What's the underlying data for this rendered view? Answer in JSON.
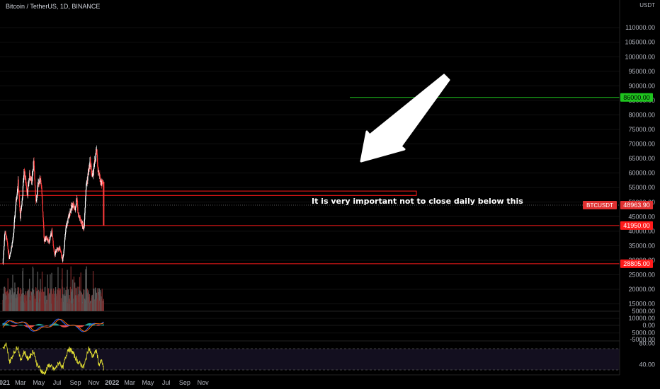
{
  "header": {
    "title": "Bitcoin / TetherUS, 1D, BINANCE",
    "currency": "USDT"
  },
  "annotation": "It is very important not to close daily below this",
  "colors": {
    "up": "#ffffff",
    "down": "#ff3b3b",
    "level": "#ff1a1a",
    "target": "#1ec41e",
    "macd": "#2962ff",
    "signal": "#ff6d00",
    "rsi": "#e6e234"
  },
  "chart_data": {
    "type": "candlestick",
    "symbol": "BTCUSDT",
    "current_price": 48963.9,
    "current_label": "48963.90",
    "ylim": [
      24000,
      112000
    ],
    "price_ticks": [
      "110000.00",
      "105000.00",
      "100000.00",
      "95000.00",
      "90000.00",
      "85000.00",
      "80000.00",
      "75000.00",
      "70000.00",
      "65000.00",
      "60000.00",
      "55000.00",
      "50000.00",
      "45000.00",
      "40000.00",
      "35000.00",
      "30000.00",
      "25000.00",
      "20000.00",
      "15000.00",
      "10000.00",
      "5000.00"
    ],
    "x_ticks": [
      "2021",
      "Mar",
      "May",
      "Jul",
      "Sep",
      "Nov",
      "2022",
      "Mar",
      "May",
      "Jul",
      "Sep",
      "Nov"
    ],
    "price_path": [
      [
        "2021-01-01",
        29000
      ],
      [
        "2021-01-08",
        40000
      ],
      [
        "2021-01-14",
        37000
      ],
      [
        "2021-01-22",
        31000
      ],
      [
        "2021-01-29",
        34000
      ],
      [
        "2021-02-05",
        38000
      ],
      [
        "2021-02-12",
        48000
      ],
      [
        "2021-02-21",
        57000
      ],
      [
        "2021-02-28",
        45000
      ],
      [
        "2021-03-07",
        51000
      ],
      [
        "2021-03-13",
        61000
      ],
      [
        "2021-03-24",
        53000
      ],
      [
        "2021-03-31",
        59000
      ],
      [
        "2021-04-07",
        57000
      ],
      [
        "2021-04-14",
        64000
      ],
      [
        "2021-04-22",
        50000
      ],
      [
        "2021-04-30",
        57000
      ],
      [
        "2021-05-08",
        58000
      ],
      [
        "2021-05-15",
        46000
      ],
      [
        "2021-05-19",
        37000
      ],
      [
        "2021-05-26",
        38000
      ],
      [
        "2021-06-04",
        36000
      ],
      [
        "2021-06-14",
        40000
      ],
      [
        "2021-06-22",
        32000
      ],
      [
        "2021-07-01",
        33500
      ],
      [
        "2021-07-10",
        34000
      ],
      [
        "2021-07-20",
        29800
      ],
      [
        "2021-07-31",
        41000
      ],
      [
        "2021-08-07",
        44000
      ],
      [
        "2021-08-14",
        47000
      ],
      [
        "2021-08-23",
        49500
      ],
      [
        "2021-08-30",
        47000
      ],
      [
        "2021-09-06",
        52000
      ],
      [
        "2021-09-09",
        46000
      ],
      [
        "2021-09-20",
        43000
      ],
      [
        "2021-09-29",
        41000
      ],
      [
        "2021-10-06",
        55000
      ],
      [
        "2021-10-15",
        61000
      ],
      [
        "2021-10-20",
        64000
      ],
      [
        "2021-10-27",
        58500
      ],
      [
        "2021-11-08",
        66000
      ],
      [
        "2021-11-10",
        68000
      ],
      [
        "2021-11-16",
        60000
      ],
      [
        "2021-11-25",
        57000
      ],
      [
        "2021-12-02",
        57000
      ],
      [
        "2021-12-04",
        48963.9
      ]
    ],
    "levels": [
      {
        "name": "target",
        "price": 86000,
        "label": "86000.00",
        "color": "#1ec41e"
      },
      {
        "name": "support-41950",
        "price": 41950,
        "label": "41950.00",
        "color": "#ff1a1a"
      },
      {
        "name": "support-28805",
        "price": 28805,
        "label": "28805.00",
        "color": "#ff1a1a"
      }
    ],
    "resistance_zone": [
      52300,
      53800
    ],
    "macd_ticks": [
      "5000.00",
      "0.00",
      "-5000.00"
    ],
    "rsi_ticks": [
      "80.00",
      "40.00"
    ],
    "rsi_bands": [
      70,
      30
    ],
    "rsi_path": [
      [
        "2021-01-01",
        70
      ],
      [
        "2021-01-12",
        78
      ],
      [
        "2021-01-24",
        45
      ],
      [
        "2021-02-05",
        60
      ],
      [
        "2021-02-20",
        75
      ],
      [
        "2021-03-01",
        48
      ],
      [
        "2021-03-14",
        65
      ],
      [
        "2021-03-25",
        50
      ],
      [
        "2021-04-14",
        66
      ],
      [
        "2021-04-25",
        40
      ],
      [
        "2021-05-19",
        22
      ],
      [
        "2021-06-04",
        40
      ],
      [
        "2021-06-22",
        30
      ],
      [
        "2021-07-10",
        45
      ],
      [
        "2021-07-20",
        33
      ],
      [
        "2021-08-07",
        70
      ],
      [
        "2021-08-20",
        65
      ],
      [
        "2021-09-09",
        45
      ],
      [
        "2021-09-29",
        35
      ],
      [
        "2021-10-15",
        72
      ],
      [
        "2021-10-27",
        55
      ],
      [
        "2021-11-10",
        66
      ],
      [
        "2021-11-18",
        40
      ],
      [
        "2021-11-28",
        47
      ],
      [
        "2021-12-04",
        30
      ]
    ]
  }
}
